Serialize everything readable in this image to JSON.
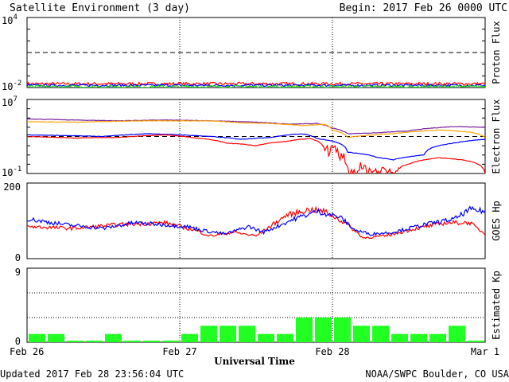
{
  "header": {
    "title": "Satellite Environment (3 day)",
    "begin": "Begin:  2017 Feb 26 0000 UTC"
  },
  "footer": {
    "updated": "Updated 2017 Feb 28 23:56:04 UTC",
    "credit": "NOAA/SWPC Boulder, CO USA",
    "xlabel": "Universal Time"
  },
  "colors": {
    "red": "#ff0000",
    "blue": "#0000ff",
    "green": "#22dd22",
    "purple": "#7a1fa2",
    "orange": "#ffa500",
    "kp_bar": "#22ff22"
  },
  "chart_data": [
    {
      "type": "line",
      "name": "proton-flux",
      "ylabel": "Proton Flux",
      "yscale": "log",
      "ylim": [
        0.01,
        10000
      ],
      "yticks": [
        {
          "base": "10",
          "exp": "4"
        },
        {
          "base": "10",
          "exp": "-2"
        }
      ],
      "threshold": 10,
      "x_days": [
        0,
        3
      ],
      "series": [
        {
          "color": "red",
          "level": 0.021,
          "noise": 0.25
        },
        {
          "color": "blue",
          "level": 0.0155,
          "noise": 0.2
        },
        {
          "color": "green",
          "level": 0.0118,
          "noise": 0.25
        }
      ]
    },
    {
      "type": "line",
      "name": "electron-flux",
      "ylabel": "Electron Flux",
      "yscale": "log",
      "ylim": [
        0.1,
        10000000
      ],
      "yticks": [
        {
          "base": "10",
          "exp": "7"
        },
        {
          "base": "10",
          "exp": "-1"
        }
      ],
      "threshold": 1000,
      "series": [
        {
          "color": "purple",
          "points": [
            [
              0,
              80000
            ],
            [
              0.3,
              60000
            ],
            [
              0.6,
              50000
            ],
            [
              0.9,
              60000
            ],
            [
              1.2,
              50000
            ],
            [
              1.3,
              45000
            ],
            [
              1.5,
              35000
            ],
            [
              1.7,
              22000
            ],
            [
              1.9,
              25000
            ],
            [
              2.0,
              8000
            ],
            [
              2.1,
              2000
            ],
            [
              2.3,
              2500
            ],
            [
              2.5,
              4000
            ],
            [
              2.8,
              12000
            ],
            [
              3.0,
              10000
            ]
          ]
        },
        {
          "color": "orange",
          "points": [
            [
              0,
              40000
            ],
            [
              0.3,
              35000
            ],
            [
              0.6,
              45000
            ],
            [
              0.9,
              50000
            ],
            [
              1.2,
              48000
            ],
            [
              1.4,
              30000
            ],
            [
              1.6,
              25000
            ],
            [
              1.8,
              15000
            ],
            [
              1.95,
              20000
            ],
            [
              2.0,
              5000
            ],
            [
              2.1,
              800
            ],
            [
              2.2,
              1200
            ],
            [
              2.4,
              2000
            ],
            [
              2.7,
              5000
            ],
            [
              2.9,
              3000
            ],
            [
              3.0,
              800
            ]
          ]
        },
        {
          "color": "blue",
          "points": [
            [
              0,
              1500
            ],
            [
              0.3,
              1200
            ],
            [
              0.5,
              1000
            ],
            [
              0.8,
              2000
            ],
            [
              1.0,
              1500
            ],
            [
              1.2,
              1000
            ],
            [
              1.4,
              500
            ],
            [
              1.6,
              800
            ],
            [
              1.8,
              2000
            ],
            [
              1.9,
              600
            ],
            [
              2.1,
              20
            ],
            [
              2.3,
              5
            ],
            [
              2.4,
              3
            ],
            [
              2.6,
              10
            ],
            [
              2.8,
              200
            ],
            [
              3.0,
              500
            ]
          ]
        },
        {
          "color": "red",
          "points": [
            [
              0,
              1000
            ],
            [
              0.3,
              700
            ],
            [
              0.6,
              800
            ],
            [
              0.9,
              1500
            ],
            [
              1.1,
              700
            ],
            [
              1.3,
              200
            ],
            [
              1.5,
              100
            ],
            [
              1.7,
              300
            ],
            [
              1.85,
              600
            ],
            [
              1.95,
              30
            ],
            [
              2.1,
              0.1
            ],
            [
              2.2,
              0.3
            ],
            [
              2.3,
              0.15
            ],
            [
              2.4,
              0.2
            ],
            [
              2.5,
              1
            ],
            [
              2.7,
              5
            ],
            [
              2.85,
              3
            ],
            [
              3.0,
              0.1
            ]
          ]
        }
      ]
    },
    {
      "type": "line",
      "name": "goes-hp",
      "ylabel": "GOES Hp",
      "ylim": [
        0,
        200
      ],
      "yticks": [
        "200",
        "0"
      ],
      "series": [
        {
          "color": "red",
          "points": [
            [
              0,
              85
            ],
            [
              0.3,
              80
            ],
            [
              0.6,
              90
            ],
            [
              0.9,
              95
            ],
            [
              1.1,
              75
            ],
            [
              1.2,
              60
            ],
            [
              1.35,
              70
            ],
            [
              1.5,
              60
            ],
            [
              1.7,
              115
            ],
            [
              1.85,
              130
            ],
            [
              1.95,
              125
            ],
            [
              2.1,
              90
            ],
            [
              2.2,
              55
            ],
            [
              2.35,
              60
            ],
            [
              2.55,
              80
            ],
            [
              2.75,
              95
            ],
            [
              2.9,
              95
            ],
            [
              3.0,
              65
            ]
          ]
        },
        {
          "color": "blue",
          "points": [
            [
              0,
              105
            ],
            [
              0.25,
              90
            ],
            [
              0.5,
              80
            ],
            [
              0.7,
              95
            ],
            [
              0.9,
              90
            ],
            [
              1.05,
              85
            ],
            [
              1.15,
              75
            ],
            [
              1.3,
              65
            ],
            [
              1.45,
              85
            ],
            [
              1.55,
              70
            ],
            [
              1.75,
              105
            ],
            [
              1.9,
              125
            ],
            [
              2.05,
              110
            ],
            [
              2.15,
              75
            ],
            [
              2.25,
              65
            ],
            [
              2.4,
              70
            ],
            [
              2.6,
              90
            ],
            [
              2.8,
              105
            ],
            [
              2.9,
              130
            ],
            [
              3.0,
              125
            ]
          ]
        }
      ]
    },
    {
      "type": "bar",
      "name": "estimated-kp",
      "ylabel": "Estimated Kp",
      "ylim": [
        0,
        9
      ],
      "yticks": [
        "9",
        "0"
      ],
      "values": [
        1,
        1,
        0,
        0,
        1,
        0,
        0,
        0,
        1,
        2,
        2,
        2,
        1,
        1,
        3,
        3,
        3,
        2,
        2,
        1,
        1,
        1,
        2,
        0
      ]
    }
  ],
  "x_axis": {
    "ticks": [
      {
        "day": 0,
        "label": "Feb 26"
      },
      {
        "day": 1,
        "label": "Feb 27"
      },
      {
        "day": 2,
        "label": "Feb 28"
      },
      {
        "day": 3,
        "label": "Mar 1"
      }
    ]
  }
}
